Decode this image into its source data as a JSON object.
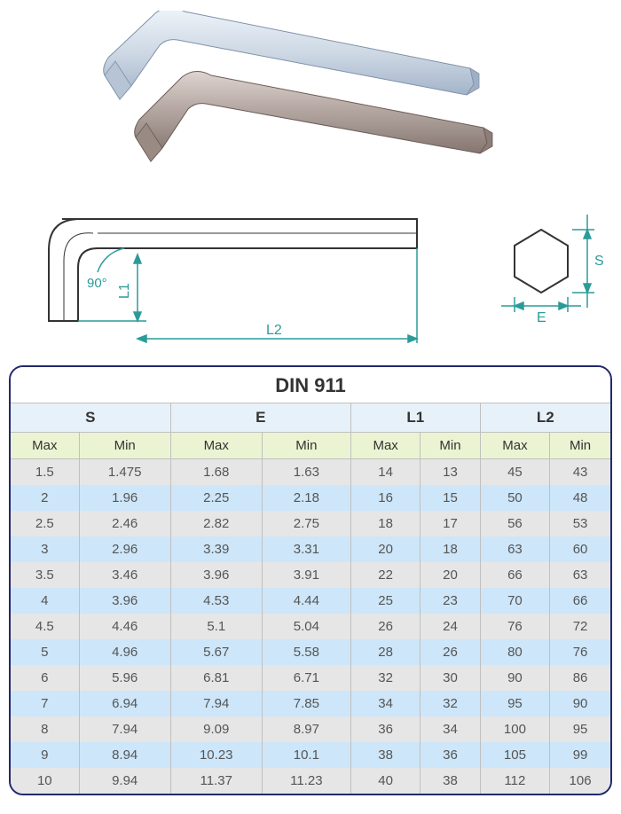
{
  "product_image": {
    "wrench_color_1": "#cdd8e4",
    "wrench_highlight_1": "#eef4fa",
    "wrench_shadow_1": "#9fb0c6",
    "wrench_color_2": "#ad9f9a",
    "wrench_highlight_2": "#ded4d0",
    "wrench_shadow_2": "#7c6d67"
  },
  "schematic": {
    "line_color": "#333333",
    "dim_color": "#2a9b99",
    "angle_label": "90°",
    "label_L1": "L1",
    "label_L2": "L2",
    "label_E": "E",
    "label_S": "S"
  },
  "table": {
    "title": "DIN 911",
    "border_color": "#23286c",
    "group_header_bg": "#e7f1f9",
    "sub_header_bg": "#eaf4d3",
    "row_odd_bg": "#e6e6e6",
    "row_even_bg": "#cde6f9",
    "groups": [
      "S",
      "E",
      "L1",
      "L2"
    ],
    "sub": [
      "Max",
      "Min",
      "Max",
      "Min",
      "Max",
      "Min",
      "Max",
      "Min"
    ],
    "rows": [
      [
        "1.5",
        "1.475",
        "1.68",
        "1.63",
        "14",
        "13",
        "45",
        "43"
      ],
      [
        "2",
        "1.96",
        "2.25",
        "2.18",
        "16",
        "15",
        "50",
        "48"
      ],
      [
        "2.5",
        "2.46",
        "2.82",
        "2.75",
        "18",
        "17",
        "56",
        "53"
      ],
      [
        "3",
        "2.96",
        "3.39",
        "3.31",
        "20",
        "18",
        "63",
        "60"
      ],
      [
        "3.5",
        "3.46",
        "3.96",
        "3.91",
        "22",
        "20",
        "66",
        "63"
      ],
      [
        "4",
        "3.96",
        "4.53",
        "4.44",
        "25",
        "23",
        "70",
        "66"
      ],
      [
        "4.5",
        "4.46",
        "5.1",
        "5.04",
        "26",
        "24",
        "76",
        "72"
      ],
      [
        "5",
        "4.96",
        "5.67",
        "5.58",
        "28",
        "26",
        "80",
        "76"
      ],
      [
        "6",
        "5.96",
        "6.81",
        "6.71",
        "32",
        "30",
        "90",
        "86"
      ],
      [
        "7",
        "6.94",
        "7.94",
        "7.85",
        "34",
        "32",
        "95",
        "90"
      ],
      [
        "8",
        "7.94",
        "9.09",
        "8.97",
        "36",
        "34",
        "100",
        "95"
      ],
      [
        "9",
        "8.94",
        "10.23",
        "10.1",
        "38",
        "36",
        "105",
        "99"
      ],
      [
        "10",
        "9.94",
        "11.37",
        "11.23",
        "40",
        "38",
        "112",
        "106"
      ]
    ]
  }
}
